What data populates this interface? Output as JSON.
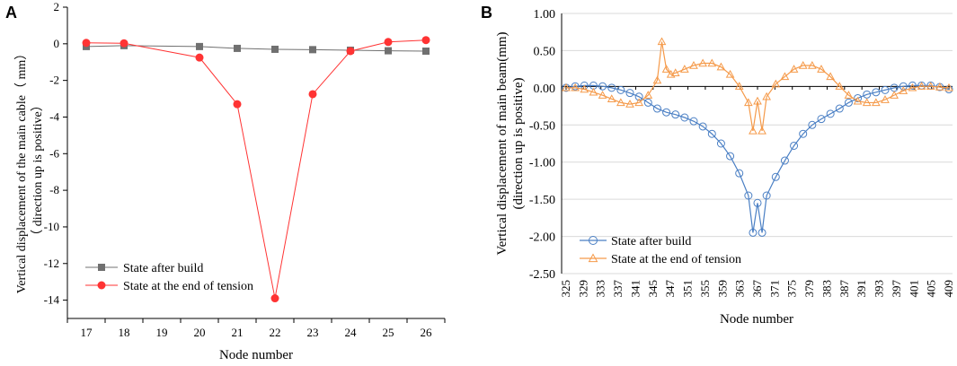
{
  "chart_data": [
    {
      "panel": "A",
      "type": "line",
      "xlabel": "Node number",
      "ylabel": [
        "Vertical displacement of the main cable（ mm）",
        "（ direction up is positive）"
      ],
      "x": [
        17,
        18,
        20,
        21,
        22,
        23,
        24,
        25,
        26
      ],
      "categories": [
        "17",
        "18",
        "19",
        "20",
        "21",
        "22",
        "23",
        "24",
        "25",
        "26"
      ],
      "ylim": [
        -15,
        2
      ],
      "yticks": [
        2,
        0,
        -2,
        -4,
        -6,
        -8,
        -10,
        -12,
        -14
      ],
      "legend_position": "bottom-left",
      "series": [
        {
          "name": "State after build",
          "color": "#707070",
          "marker": "square",
          "values": [
            -0.15,
            -0.1,
            -0.15,
            -0.25,
            -0.3,
            -0.32,
            -0.35,
            -0.38,
            -0.4
          ]
        },
        {
          "name": "State at the end of tension",
          "color": "#ff3333",
          "marker": "circle",
          "values": [
            0.05,
            0.03,
            -0.75,
            -3.3,
            -13.9,
            -2.75,
            -0.4,
            0.1,
            0.2
          ]
        }
      ]
    },
    {
      "panel": "B",
      "type": "line",
      "xlabel": "Node number",
      "ylabel": [
        "Vertical displacement of main beam(mm)",
        "(direction up is positive)"
      ],
      "xlim": [
        325,
        409
      ],
      "xticks": [
        "325",
        "329",
        "333",
        "337",
        "341",
        "345",
        "347",
        "351",
        "355",
        "359",
        "363",
        "367",
        "371",
        "375",
        "379",
        "383",
        "387",
        "391",
        "393",
        "397",
        "401",
        "405",
        "409"
      ],
      "ylim": [
        -2.5,
        1.0
      ],
      "yticks": [
        "1.00",
        "0.50",
        "0.00",
        "-0.50",
        "-1.00",
        "-1.50",
        "-2.00",
        "-2.50"
      ],
      "grid": true,
      "legend_position": "bottom-left",
      "series": [
        {
          "name": "State after build",
          "color": "#4a7fc4",
          "marker": "circle",
          "x": [
            325,
            327,
            329,
            331,
            333,
            335,
            337,
            339,
            341,
            343,
            345,
            347,
            349,
            351,
            353,
            355,
            357,
            359,
            361,
            363,
            365,
            366,
            367,
            368,
            369,
            371,
            373,
            375,
            377,
            379,
            381,
            383,
            385,
            387,
            389,
            391,
            393,
            395,
            397,
            399,
            401,
            403,
            405,
            407,
            409
          ],
          "values": [
            0.0,
            0.02,
            0.03,
            0.03,
            0.02,
            0.0,
            -0.03,
            -0.07,
            -0.12,
            -0.2,
            -0.28,
            -0.33,
            -0.36,
            -0.4,
            -0.45,
            -0.52,
            -0.62,
            -0.75,
            -0.92,
            -1.15,
            -1.45,
            -1.95,
            -1.55,
            -1.95,
            -1.45,
            -1.2,
            -0.98,
            -0.78,
            -0.62,
            -0.5,
            -0.42,
            -0.35,
            -0.28,
            -0.2,
            -0.14,
            -0.09,
            -0.06,
            -0.03,
            0.0,
            0.02,
            0.03,
            0.03,
            0.03,
            0.01,
            -0.02
          ]
        },
        {
          "name": "State at the end of tension",
          "color": "#f59a4a",
          "marker": "triangle",
          "x": [
            325,
            327,
            329,
            331,
            333,
            335,
            337,
            339,
            341,
            343,
            345,
            346,
            347,
            348,
            349,
            351,
            353,
            355,
            357,
            359,
            361,
            363,
            365,
            366,
            367,
            368,
            369,
            371,
            373,
            375,
            377,
            379,
            381,
            383,
            385,
            387,
            389,
            391,
            393,
            395,
            397,
            399,
            401,
            403,
            405,
            407,
            409
          ],
          "values": [
            0.0,
            0.0,
            -0.02,
            -0.06,
            -0.1,
            -0.15,
            -0.2,
            -0.22,
            -0.2,
            -0.1,
            0.1,
            0.62,
            0.25,
            0.18,
            0.2,
            0.25,
            0.3,
            0.33,
            0.33,
            0.28,
            0.18,
            0.02,
            -0.2,
            -0.58,
            -0.18,
            -0.58,
            -0.12,
            0.05,
            0.15,
            0.25,
            0.3,
            0.3,
            0.25,
            0.15,
            0.02,
            -0.1,
            -0.18,
            -0.2,
            -0.2,
            -0.16,
            -0.1,
            -0.04,
            0.0,
            0.02,
            0.02,
            0.01,
            0.0
          ]
        }
      ]
    }
  ]
}
